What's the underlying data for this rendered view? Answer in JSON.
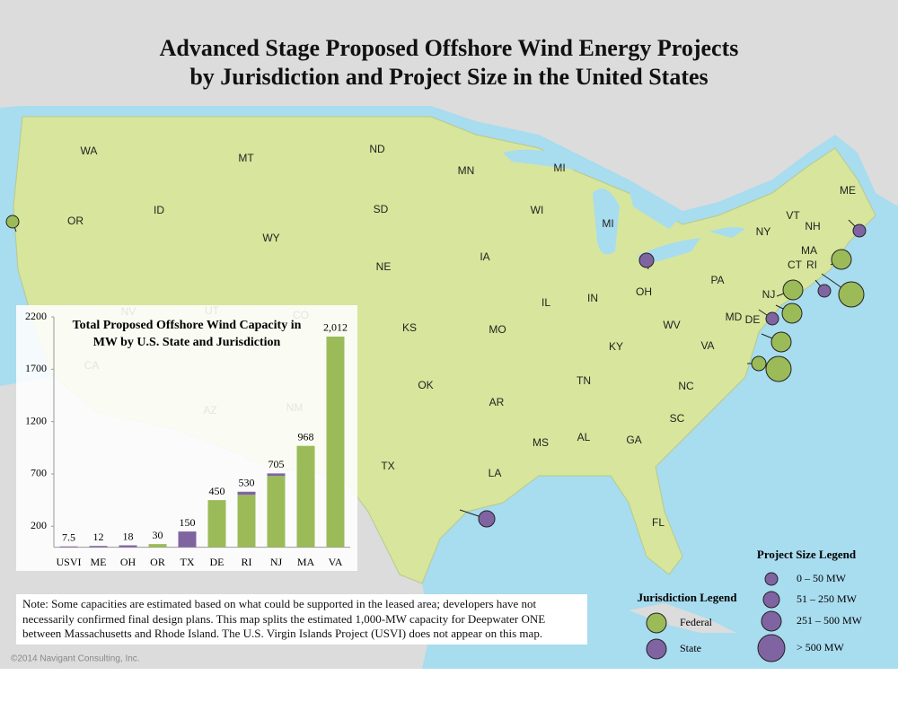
{
  "title_lines": [
    "Advanced Stage Proposed Offshore Wind Energy Projects",
    "by Jurisdiction and Project Size in the United States"
  ],
  "states": [
    "WA",
    "MT",
    "ND",
    "MN",
    "MI",
    "ME",
    "OR",
    "ID",
    "SD",
    "WI",
    "MI",
    "VT",
    "NH",
    "NY",
    "WY",
    "IA",
    "MA",
    "CT",
    "RI",
    "NE",
    "PA",
    "OH",
    "NJ",
    "IL",
    "IN",
    "MD",
    "DE",
    "WV",
    "KS",
    "MO",
    "VA",
    "KY",
    "TN",
    "NC",
    "OK",
    "AR",
    "SC",
    "MS",
    "AL",
    "GA",
    "TX",
    "LA",
    "FL",
    "NV",
    "UT",
    "CO",
    "CA",
    "AZ",
    "NM"
  ],
  "size_legend": {
    "title": "Project Size Legend",
    "items": [
      "0 – 50 MW",
      "51 – 250 MW",
      "251 – 500 MW",
      "> 500 MW"
    ]
  },
  "jurisdiction_legend": {
    "title": "Jurisdiction Legend",
    "items": [
      {
        "label": "Federal",
        "color": "#9bbb59"
      },
      {
        "label": "State",
        "color": "#8064a2"
      }
    ]
  },
  "note": "Note: Some capacities are estimated based on what could be supported in the leased area; developers have not necessarily confirmed final design plans. This map splits the estimated 1,000-MW capacity for Deepwater ONE between Massachusetts and Rhode Island. The U.S. Virgin Islands Project (USVI) does not appear on this map.",
  "copyright": "©2014 Navigant Consulting, Inc.",
  "chart_data": {
    "type": "bar",
    "title_lines": [
      "Total Proposed Offshore Wind Capacity in",
      "MW by U.S. State and Jurisdiction"
    ],
    "categories": [
      "USVI",
      "ME",
      "OH",
      "OR",
      "TX",
      "DE",
      "RI",
      "NJ",
      "MA",
      "VA"
    ],
    "series": [
      {
        "color": "#9bbb59",
        "values": [
          0,
          0,
          0,
          30,
          0,
          450,
          500,
          680,
          968,
          2012
        ]
      },
      {
        "color": "#8064a2",
        "values": [
          7.5,
          12,
          18,
          0,
          150,
          0,
          30,
          25,
          0,
          0
        ]
      }
    ],
    "totals": {
      "values": [
        7.5,
        12,
        18,
        30,
        150,
        450,
        530,
        705,
        968,
        2012
      ],
      "value_labels": [
        "7.5",
        "12",
        "18",
        "30",
        "150",
        "450",
        "530",
        "705",
        "968",
        "2,012"
      ]
    },
    "ylim": [
      0,
      2200
    ],
    "yticks": [
      200,
      700,
      1200,
      1700,
      2200
    ]
  }
}
